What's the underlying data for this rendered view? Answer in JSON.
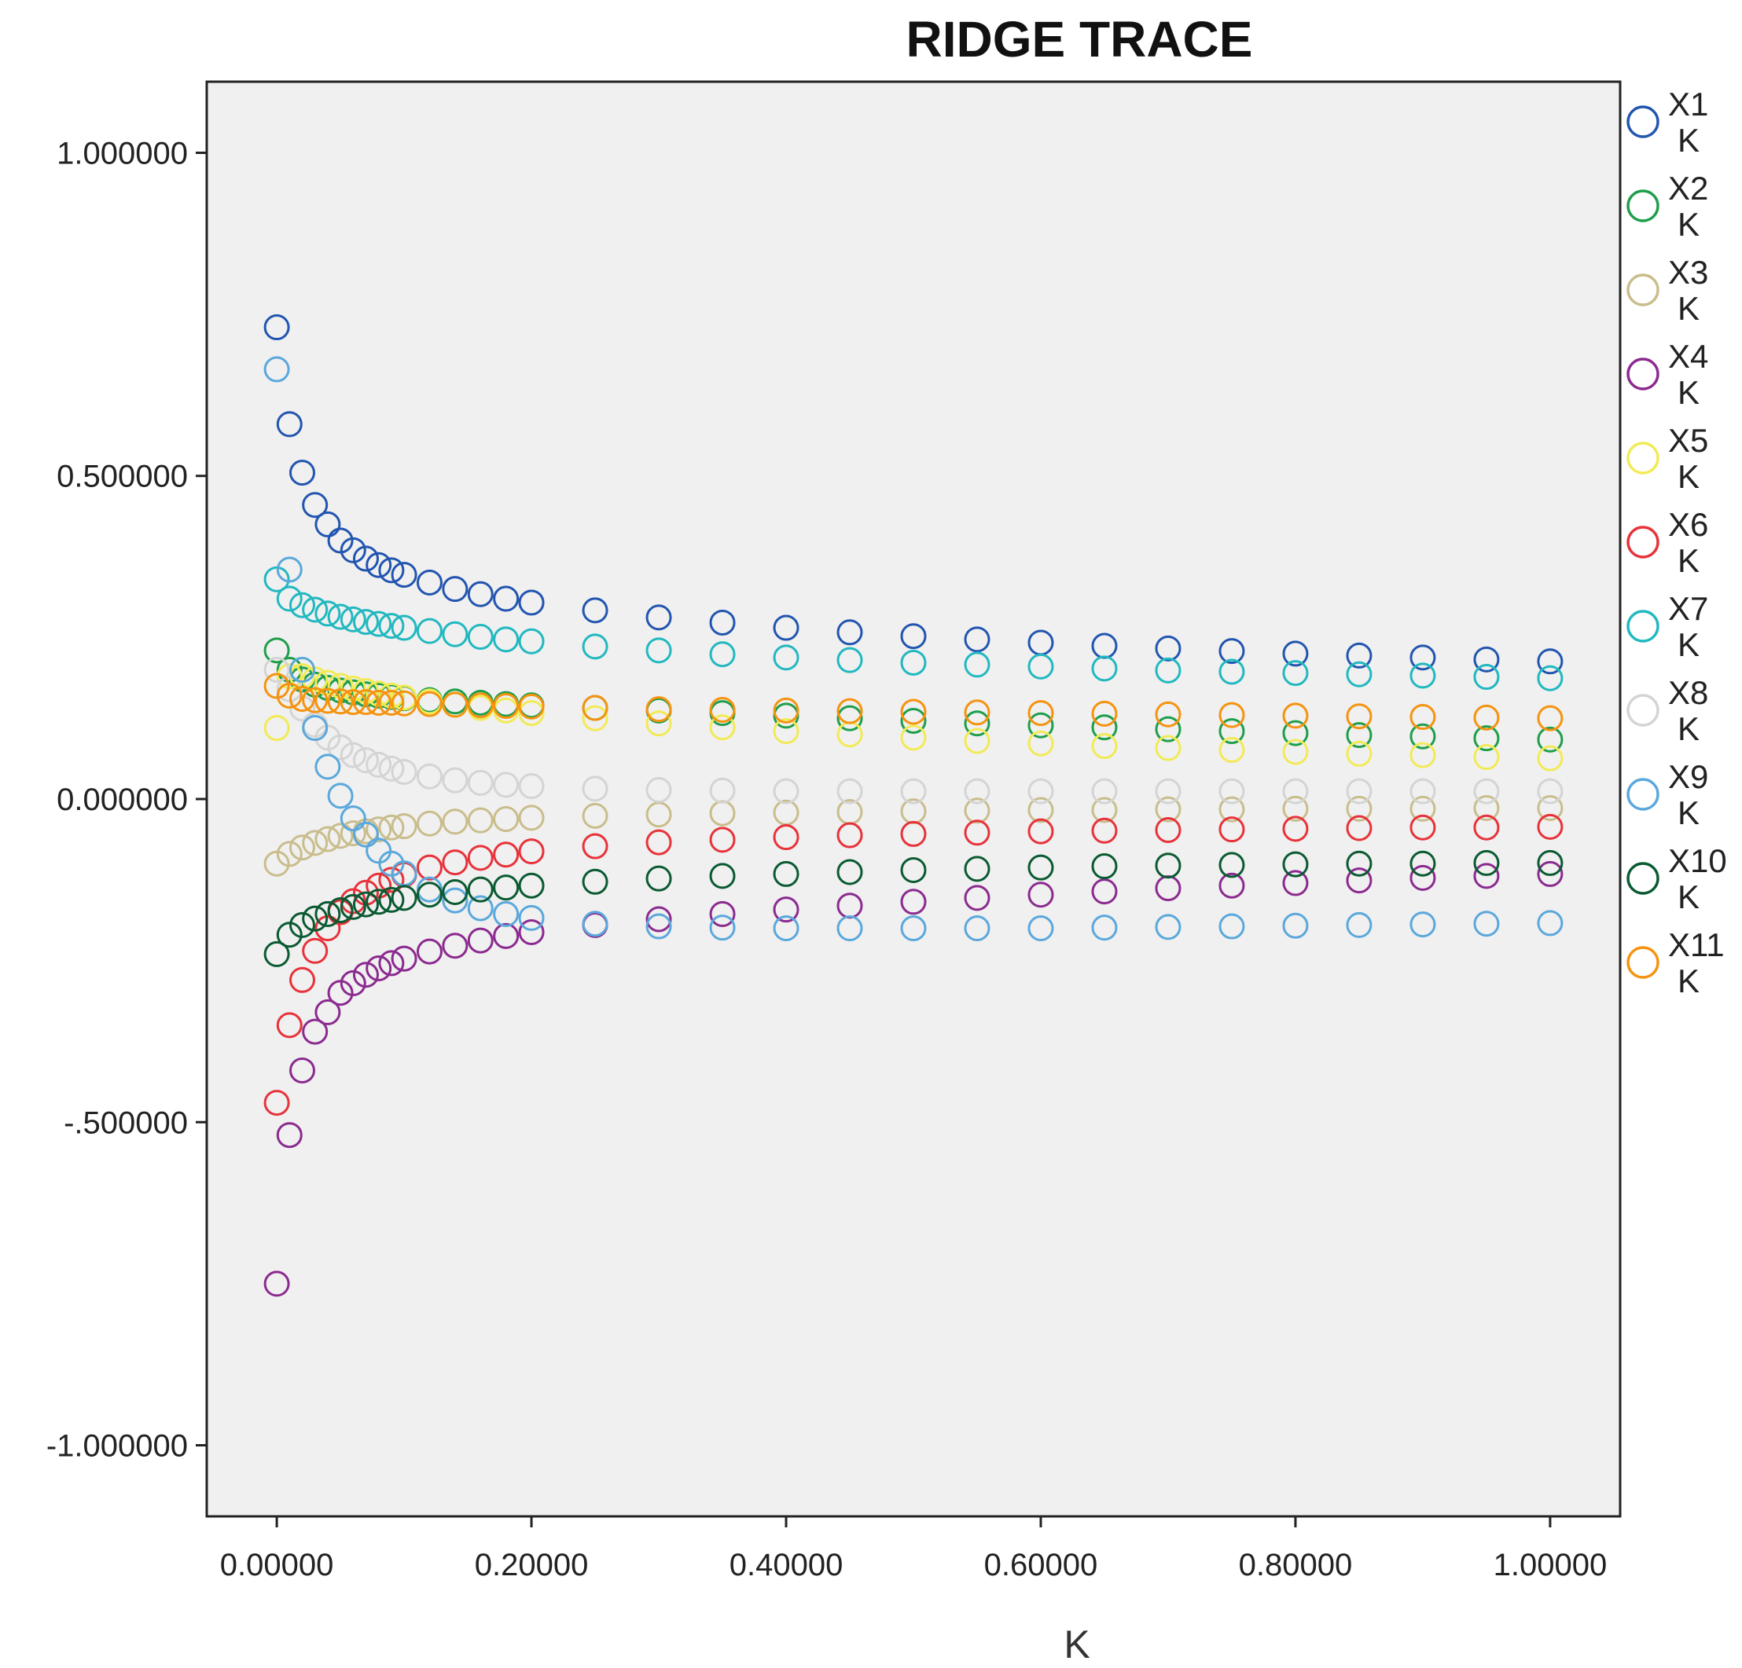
{
  "chart_data": {
    "type": "scatter",
    "title": "RIDGE TRACE",
    "xlabel": "K",
    "ylabel": "",
    "xlim": [
      -0.055,
      1.055
    ],
    "ylim": [
      -1.11,
      1.11
    ],
    "x_ticks": [
      0.0,
      0.2,
      0.4,
      0.6,
      0.8,
      1.0
    ],
    "x_tick_labels": [
      "0.00000",
      "0.20000",
      "0.40000",
      "0.60000",
      "0.80000",
      "1.00000"
    ],
    "y_ticks": [
      1.0,
      0.5,
      0.0,
      -0.5,
      -1.0
    ],
    "y_tick_labels": [
      "1.000000",
      "0.500000",
      "0.000000",
      "-.500000",
      "-1.000000"
    ],
    "grid": false,
    "legend_position": "right",
    "k_values": [
      0.0,
      0.01,
      0.02,
      0.03,
      0.04,
      0.05,
      0.06,
      0.07,
      0.08,
      0.09,
      0.1,
      0.12,
      0.14,
      0.16,
      0.18,
      0.2,
      0.25,
      0.3,
      0.35,
      0.4,
      0.45,
      0.5,
      0.55,
      0.6,
      0.65,
      0.7,
      0.75,
      0.8,
      0.85,
      0.9,
      0.95,
      1.0
    ],
    "series": [
      {
        "name": "X1",
        "sublabel": "K",
        "color": "#2255b0",
        "values": [
          0.73,
          0.58,
          0.505,
          0.455,
          0.425,
          0.4,
          0.385,
          0.372,
          0.362,
          0.354,
          0.347,
          0.335,
          0.325,
          0.317,
          0.31,
          0.304,
          0.292,
          0.281,
          0.273,
          0.265,
          0.258,
          0.252,
          0.247,
          0.242,
          0.237,
          0.233,
          0.229,
          0.225,
          0.222,
          0.219,
          0.216,
          0.213
        ]
      },
      {
        "name": "X2",
        "sublabel": "K",
        "color": "#1e9e4a",
        "values": [
          0.23,
          0.2,
          0.185,
          0.177,
          0.172,
          0.168,
          0.165,
          0.162,
          0.16,
          0.158,
          0.156,
          0.153,
          0.151,
          0.149,
          0.147,
          0.145,
          0.141,
          0.137,
          0.133,
          0.129,
          0.125,
          0.121,
          0.117,
          0.114,
          0.111,
          0.108,
          0.105,
          0.102,
          0.099,
          0.097,
          0.094,
          0.092
        ]
      },
      {
        "name": "X3",
        "sublabel": "K",
        "color": "#c9bd8c",
        "values": [
          -0.1,
          -0.085,
          -0.075,
          -0.068,
          -0.062,
          -0.057,
          -0.053,
          -0.05,
          -0.047,
          -0.044,
          -0.042,
          -0.038,
          -0.035,
          -0.033,
          -0.031,
          -0.029,
          -0.026,
          -0.024,
          -0.022,
          -0.021,
          -0.02,
          -0.019,
          -0.018,
          -0.017,
          -0.017,
          -0.016,
          -0.016,
          -0.015,
          -0.015,
          -0.015,
          -0.014,
          -0.014
        ]
      },
      {
        "name": "X4",
        "sublabel": "K",
        "color": "#8b2a8f",
        "values": [
          -0.75,
          -0.52,
          -0.42,
          -0.36,
          -0.33,
          -0.3,
          -0.285,
          -0.272,
          -0.262,
          -0.254,
          -0.247,
          -0.236,
          -0.227,
          -0.219,
          -0.212,
          -0.206,
          -0.195,
          -0.186,
          -0.178,
          -0.171,
          -0.165,
          -0.159,
          -0.153,
          -0.148,
          -0.143,
          -0.138,
          -0.134,
          -0.13,
          -0.126,
          -0.122,
          -0.119,
          -0.116
        ]
      },
      {
        "name": "X5",
        "sublabel": "K",
        "color": "#f2ea55",
        "values": [
          0.11,
          0.19,
          0.19,
          0.185,
          0.18,
          0.175,
          0.171,
          0.167,
          0.163,
          0.16,
          0.157,
          0.151,
          0.146,
          0.141,
          0.137,
          0.133,
          0.125,
          0.117,
          0.111,
          0.105,
          0.1,
          0.095,
          0.09,
          0.086,
          0.082,
          0.079,
          0.076,
          0.073,
          0.07,
          0.068,
          0.065,
          0.063
        ]
      },
      {
        "name": "X6",
        "sublabel": "K",
        "color": "#e8323a",
        "values": [
          -0.47,
          -0.35,
          -0.28,
          -0.235,
          -0.2,
          -0.175,
          -0.158,
          -0.145,
          -0.134,
          -0.125,
          -0.117,
          -0.106,
          -0.098,
          -0.091,
          -0.086,
          -0.081,
          -0.073,
          -0.067,
          -0.063,
          -0.059,
          -0.056,
          -0.054,
          -0.052,
          -0.05,
          -0.049,
          -0.048,
          -0.047,
          -0.046,
          -0.045,
          -0.044,
          -0.044,
          -0.043
        ]
      },
      {
        "name": "X7",
        "sublabel": "K",
        "color": "#21b8c0",
        "values": [
          0.34,
          0.31,
          0.3,
          0.293,
          0.287,
          0.282,
          0.278,
          0.274,
          0.271,
          0.268,
          0.265,
          0.26,
          0.255,
          0.251,
          0.247,
          0.244,
          0.236,
          0.23,
          0.224,
          0.219,
          0.215,
          0.211,
          0.208,
          0.205,
          0.202,
          0.199,
          0.197,
          0.195,
          0.193,
          0.191,
          0.189,
          0.187
        ]
      },
      {
        "name": "X8",
        "sublabel": "K",
        "color": "#d4d4d4",
        "values": [
          0.2,
          0.17,
          0.14,
          0.115,
          0.095,
          0.08,
          0.068,
          0.06,
          0.053,
          0.047,
          0.042,
          0.035,
          0.029,
          0.025,
          0.022,
          0.02,
          0.016,
          0.014,
          0.013,
          0.012,
          0.012,
          0.012,
          0.012,
          0.012,
          0.012,
          0.012,
          0.012,
          0.012,
          0.012,
          0.012,
          0.012,
          0.012
        ]
      },
      {
        "name": "X9",
        "sublabel": "K",
        "color": "#5aa8dc",
        "values": [
          0.665,
          0.355,
          0.2,
          0.11,
          0.05,
          0.005,
          -0.03,
          -0.055,
          -0.08,
          -0.1,
          -0.115,
          -0.14,
          -0.157,
          -0.169,
          -0.178,
          -0.184,
          -0.193,
          -0.197,
          -0.199,
          -0.2,
          -0.2,
          -0.2,
          -0.2,
          -0.2,
          -0.199,
          -0.198,
          -0.197,
          -0.196,
          -0.195,
          -0.194,
          -0.193,
          -0.192
        ]
      },
      {
        "name": "X10",
        "sublabel": "K",
        "color": "#0a5a32",
        "values": [
          -0.24,
          -0.21,
          -0.195,
          -0.185,
          -0.178,
          -0.172,
          -0.167,
          -0.163,
          -0.159,
          -0.156,
          -0.153,
          -0.148,
          -0.144,
          -0.14,
          -0.137,
          -0.134,
          -0.128,
          -0.123,
          -0.119,
          -0.116,
          -0.113,
          -0.11,
          -0.108,
          -0.106,
          -0.104,
          -0.103,
          -0.102,
          -0.101,
          -0.1,
          -0.1,
          -0.099,
          -0.099
        ]
      },
      {
        "name": "X11",
        "sublabel": "K",
        "color": "#f5930f",
        "values": [
          0.175,
          0.16,
          0.155,
          0.153,
          0.152,
          0.151,
          0.15,
          0.15,
          0.149,
          0.149,
          0.148,
          0.147,
          0.146,
          0.145,
          0.144,
          0.143,
          0.141,
          0.139,
          0.138,
          0.137,
          0.136,
          0.135,
          0.134,
          0.133,
          0.132,
          0.131,
          0.13,
          0.129,
          0.128,
          0.127,
          0.126,
          0.125
        ]
      }
    ]
  }
}
